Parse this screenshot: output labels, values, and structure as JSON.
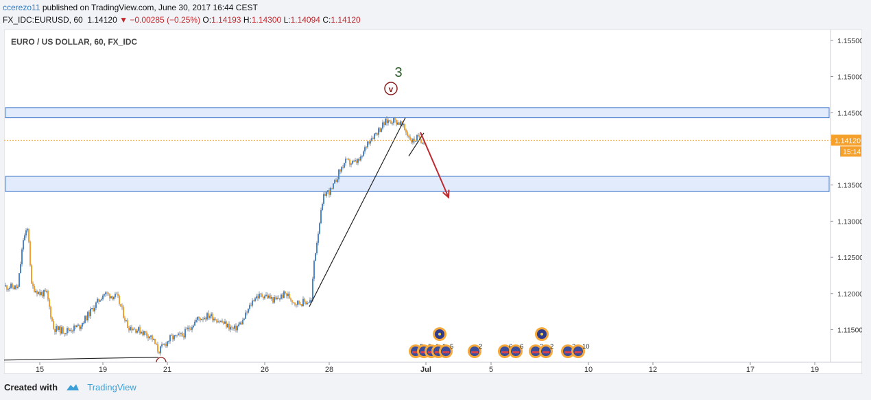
{
  "header": {
    "author": "ccerezo11",
    "published_text": "published on TradingView.com, June 30, 2017 16:44 CEST",
    "symbol": "FX_IDC:EURUSD, 60",
    "last": "1.14120",
    "change": "▼ −0.00285 (−0.25%)",
    "o_label": "O:",
    "o_value": "1.14193",
    "h_label": "H:",
    "h_value": "1.14300",
    "l_label": "L:",
    "l_value": "1.14094",
    "c_label": "C:",
    "c_value": "1.14120"
  },
  "footer": {
    "created_with": "Created with",
    "brand": "TradingView"
  },
  "colors": {
    "up": "#4a86c8",
    "down": "#f5a02a",
    "zone_fill": "#dce7fb",
    "zone_border": "#3f76c9",
    "arrow": "#c0282d",
    "price_line": "#f5a02a"
  },
  "chart_data": {
    "type": "candlestick",
    "title": "EURO / US DOLLAR, 60, FX_IDC",
    "x_ticks": [
      "15",
      "19",
      "21",
      "26",
      "28",
      "Jul",
      "5",
      "10",
      "12",
      "17",
      "19"
    ],
    "y_ticks": [
      "1.15500",
      "1.15000",
      "1.14500",
      "1.13500",
      "1.13000",
      "1.12500",
      "1.12000",
      "1.11500"
    ],
    "ylim": [
      1.1105,
      1.1565
    ],
    "last_price": "1.14120",
    "countdown": "15:14",
    "wave_label": "3",
    "wave_marker": "v",
    "resistance_zones": [
      {
        "top": 1.1457,
        "bottom": 1.1443
      },
      {
        "top": 1.1362,
        "bottom": 1.1341
      }
    ],
    "price_path": [
      [
        0,
        1.121
      ],
      [
        20,
        1.1208
      ],
      [
        28,
        1.1275
      ],
      [
        35,
        1.129
      ],
      [
        40,
        1.121
      ],
      [
        52,
        1.12
      ],
      [
        62,
        1.12
      ],
      [
        72,
        1.1152
      ],
      [
        88,
        1.1148
      ],
      [
        110,
        1.1155
      ],
      [
        130,
        1.118
      ],
      [
        145,
        1.12
      ],
      [
        165,
        1.1195
      ],
      [
        180,
        1.1155
      ],
      [
        200,
        1.1148
      ],
      [
        215,
        1.114
      ],
      [
        225,
        1.112
      ],
      [
        242,
        1.1138
      ],
      [
        260,
        1.1142
      ],
      [
        282,
        1.1165
      ],
      [
        300,
        1.117
      ],
      [
        318,
        1.116
      ],
      [
        335,
        1.115
      ],
      [
        348,
        1.1162
      ],
      [
        365,
        1.1195
      ],
      [
        380,
        1.1198
      ],
      [
        395,
        1.119
      ],
      [
        410,
        1.12
      ],
      [
        425,
        1.1187
      ],
      [
        437,
        1.1188
      ],
      [
        448,
        1.119
      ],
      [
        452,
        1.1245
      ],
      [
        460,
        1.13
      ],
      [
        467,
        1.1338
      ],
      [
        478,
        1.1343
      ],
      [
        487,
        1.1365
      ],
      [
        497,
        1.1382
      ],
      [
        510,
        1.138
      ],
      [
        520,
        1.1385
      ],
      [
        530,
        1.141
      ],
      [
        545,
        1.1425
      ],
      [
        557,
        1.1438
      ],
      [
        567,
        1.144
      ],
      [
        578,
        1.1435
      ],
      [
        585,
        1.1425
      ],
      [
        595,
        1.141
      ],
      [
        602,
        1.1415
      ],
      [
        610,
        1.1412
      ]
    ],
    "trend_lines": [
      {
        "points": [
          [
            0,
            1.1108
          ],
          [
            225,
            1.1112
          ]
        ],
        "color": "#222"
      },
      {
        "points": [
          [
            445,
            1.1182
          ],
          [
            585,
            1.1443
          ]
        ],
        "color": "#222"
      },
      {
        "points": [
          [
            590,
            1.139
          ],
          [
            612,
            1.1422
          ]
        ],
        "color": "#222"
      }
    ],
    "projection_arrow": {
      "from": [
        607,
        1.1423
      ],
      "to": [
        648,
        1.1333
      ]
    },
    "events": [
      {
        "x": 600,
        "label": "5"
      },
      {
        "x": 612,
        "label": "2"
      },
      {
        "x": 623,
        "label": "2"
      },
      {
        "x": 633,
        "label": "3"
      },
      {
        "x": 644,
        "label": "5"
      },
      {
        "x": 686,
        "label": "2"
      },
      {
        "x": 730,
        "label": "6"
      },
      {
        "x": 746,
        "label": "6"
      },
      {
        "x": 775,
        "label": "2"
      },
      {
        "x": 790,
        "label": "2"
      },
      {
        "x": 822,
        "label": "2"
      },
      {
        "x": 837,
        "label": "10"
      }
    ],
    "event_flags_top": [
      {
        "x": 635
      },
      {
        "x": 784
      }
    ]
  }
}
